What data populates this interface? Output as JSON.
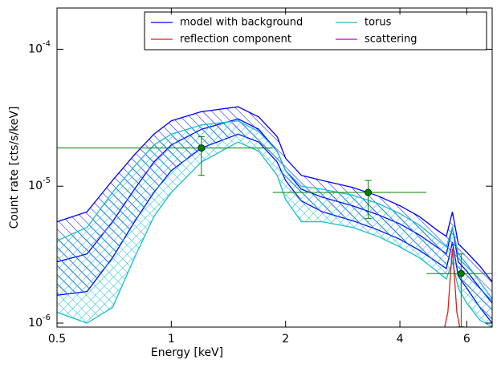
{
  "chart_data": {
    "type": "line",
    "xlabel": "Energy [keV]",
    "ylabel": "Count rate [cts/s/keV]",
    "log_x": true,
    "log_y": true,
    "xlim": [
      0.5,
      7.0
    ],
    "ylim": [
      9.35e-07,
      0.0002
    ],
    "xticks": [
      0.5,
      1,
      2,
      4,
      6
    ],
    "yticks": [
      {
        "value": 1e-06,
        "label": "10",
        "exponent": "-6"
      },
      {
        "value": 1e-05,
        "label": "10",
        "exponent": "-5"
      },
      {
        "value": 0.0001,
        "label": "10",
        "exponent": "-4"
      }
    ],
    "x": [
      0.5,
      0.6,
      0.7,
      0.8,
      0.9,
      1.0,
      1.2,
      1.5,
      1.7,
      1.9,
      2.0,
      2.2,
      2.5,
      3.0,
      3.5,
      4.0,
      4.5,
      5.0,
      5.3,
      5.5,
      5.7,
      6.0,
      6.5,
      7.0
    ],
    "series": [
      {
        "name": "model with background",
        "color": "#0000ff",
        "values": [
          2.8e-06,
          3.2e-06,
          5.5e-06,
          9.5e-06,
          1.5e-05,
          2e-05,
          2.6e-05,
          3.1e-05,
          2.6e-05,
          1.8e-05,
          1.3e-05,
          9.5e-06,
          8.3e-06,
          7.2e-06,
          6.2e-06,
          5.3e-06,
          4.4e-06,
          3.6e-06,
          3.2e-06,
          5e-06,
          2.8e-06,
          2.4e-06,
          1.8e-06,
          1.4e-06
        ],
        "lower": [
          1.6e-06,
          1.7e-06,
          3e-06,
          5.5e-06,
          9e-06,
          1.3e-05,
          1.9e-05,
          2.4e-05,
          2.1e-05,
          1.5e-05,
          1.1e-05,
          7.8e-06,
          6.5e-06,
          5.6e-06,
          4.8e-06,
          4.1e-06,
          3.4e-06,
          2.8e-06,
          2.5e-06,
          3.9e-06,
          2.2e-06,
          1.8e-06,
          1.3e-06,
          1e-06
        ],
        "upper": [
          5.5e-06,
          6.5e-06,
          1.1e-05,
          1.7e-05,
          2.4e-05,
          3e-05,
          3.5e-05,
          3.8e-05,
          3.2e-05,
          2.3e-05,
          1.6e-05,
          1.2e-05,
          1.1e-05,
          9.8e-06,
          8.5e-06,
          7.2e-06,
          6e-06,
          4.8e-06,
          4.3e-06,
          6.5e-06,
          3.8e-06,
          3.3e-06,
          2.6e-06,
          2e-06
        ]
      },
      {
        "name": "torus",
        "color": "#17becf",
        "lower": [
          1.2e-06,
          1e-06,
          1.3e-06,
          3e-06,
          6e-06,
          9e-06,
          1.5e-05,
          2.1e-05,
          1.8e-05,
          1.2e-05,
          8e-06,
          5.5e-06,
          5.5e-06,
          5e-06,
          4.3e-06,
          3.6e-06,
          3e-06,
          2.4e-06,
          2.1e-06,
          2.8e-06,
          1.8e-06,
          1.4e-06,
          1.05e-06,
          9.4e-07
        ],
        "upper": [
          4e-06,
          5e-06,
          9e-06,
          1.4e-05,
          2e-05,
          2.4e-05,
          2.8e-05,
          3e-05,
          2.5e-05,
          1.8e-05,
          1.3e-05,
          1e-05,
          9.5e-06,
          8.6e-06,
          7.5e-06,
          6.3e-06,
          5.2e-06,
          4.1e-06,
          3.6e-06,
          5e-06,
          3.2e-06,
          2.7e-06,
          2e-06,
          1.5e-06
        ]
      },
      {
        "name": "reflection component",
        "color": "#e31a1c",
        "x": [
          5.25,
          5.35,
          5.45,
          5.5,
          5.55,
          5.65,
          5.75
        ],
        "values": [
          9.4e-07,
          1.2e-06,
          2.5e-06,
          3.5e-06,
          2.5e-06,
          1.2e-06,
          9.4e-07
        ]
      },
      {
        "name": "scattering",
        "color": "#bf00bf",
        "x": [],
        "values": []
      }
    ],
    "points": {
      "color": "#008000",
      "x": [
        1.2,
        3.3,
        5.8
      ],
      "values": [
        1.9e-05,
        9e-06,
        2.3e-06
      ],
      "x_low": [
        0.5,
        1.85,
        4.7
      ],
      "x_high": [
        1.85,
        4.7,
        7.0
      ],
      "y_low": [
        1.2e-05,
        5.8e-06,
        9.4e-07
      ],
      "y_high": [
        2.3e-05,
        1.1e-05,
        3.2e-06
      ]
    }
  }
}
